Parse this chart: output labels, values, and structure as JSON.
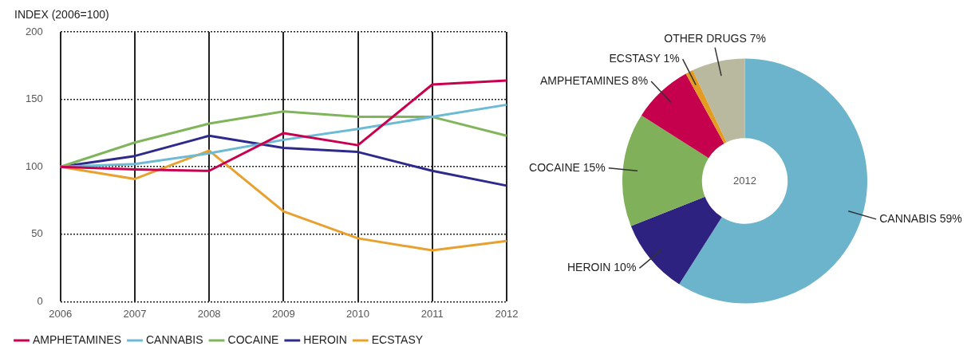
{
  "chart_data": [
    {
      "type": "line",
      "ylabel": "INDEX (2006=100)",
      "categories": [
        "2006",
        "2007",
        "2008",
        "2009",
        "2010",
        "2011",
        "2012"
      ],
      "series": [
        {
          "name": "AMPHETAMINES",
          "color": "#c8004f",
          "values": [
            100,
            98,
            97,
            125,
            116,
            161,
            164
          ]
        },
        {
          "name": "CANNABIS",
          "color": "#6cbad3",
          "values": [
            100,
            102,
            110,
            120,
            128,
            137,
            146
          ]
        },
        {
          "name": "COCAINE",
          "color": "#80b55c",
          "values": [
            100,
            118,
            132,
            141,
            137,
            137,
            123
          ]
        },
        {
          "name": "HEROIN",
          "color": "#2e2a8c",
          "values": [
            100,
            108,
            123,
            114,
            111,
            97,
            86
          ]
        },
        {
          "name": "ECSTASY",
          "color": "#e8a02e",
          "values": [
            100,
            91,
            112,
            67,
            47,
            38,
            45
          ]
        }
      ],
      "ylim": [
        0,
        200
      ],
      "yticks": [
        0,
        50,
        100,
        150,
        200
      ],
      "grid": true,
      "legend": "bottom",
      "marker": "none",
      "line_style": "solid"
    },
    {
      "type": "donut",
      "categories": [
        "CANNABIS",
        "HEROIN",
        "COCAINE",
        "AMPHETAMINES",
        "ECSTASY",
        "OTHER DRUGS"
      ],
      "values": [
        59,
        10,
        15,
        8,
        1,
        7
      ],
      "value_labels": [
        "59%",
        "10%",
        "15%",
        "8%",
        "1%",
        "7%"
      ],
      "colors": [
        "#6cb4cb",
        "#2e2280",
        "#80b05a",
        "#c5004c",
        "#e39b22",
        "#b8b99e"
      ],
      "annotations": [
        "2012"
      ]
    }
  ]
}
